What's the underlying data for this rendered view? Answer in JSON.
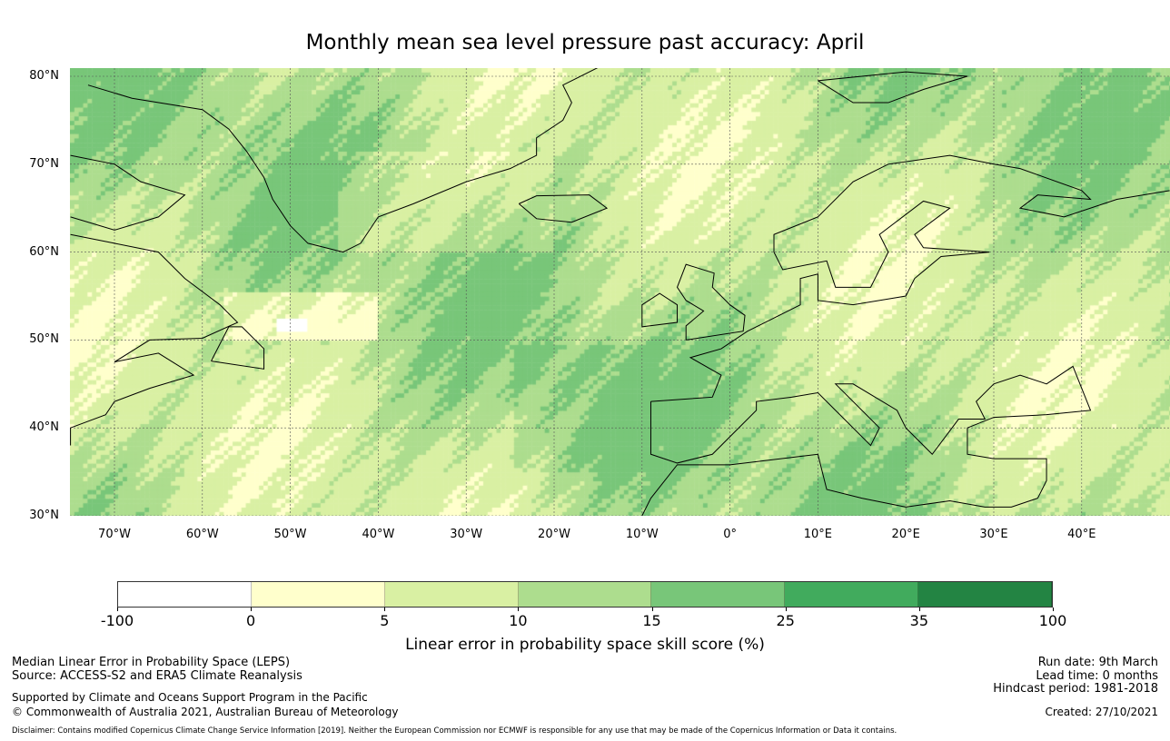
{
  "title": "Monthly mean sea level pressure past accuracy: April",
  "map": {
    "lat_labels": [
      "80°N",
      "70°N",
      "60°N",
      "50°N",
      "40°N",
      "30°N"
    ],
    "lat_values": [
      80,
      70,
      60,
      50,
      40,
      30
    ],
    "lon_labels": [
      "70°W",
      "60°W",
      "50°W",
      "40°W",
      "30°W",
      "20°W",
      "10°W",
      "0°",
      "10°E",
      "20°E",
      "30°E",
      "40°E"
    ],
    "lon_values": [
      -70,
      -60,
      -50,
      -40,
      -30,
      -20,
      -10,
      0,
      10,
      20,
      30,
      40
    ],
    "extent": {
      "lon": [
        -75,
        50
      ],
      "lat": [
        30,
        81
      ]
    }
  },
  "colorbar": {
    "ticks": [
      "-100",
      "0",
      "5",
      "10",
      "15",
      "25",
      "35",
      "100"
    ],
    "colors": [
      "#ffffff",
      "#ffffcc",
      "#d9f0a3",
      "#addd8e",
      "#78c679",
      "#41ab5d",
      "#238443"
    ],
    "label": "Linear error in probability space skill score (%)"
  },
  "footer": {
    "metric": "Median Linear Error in Probability Space (LEPS)",
    "source": "Source: ACCESS-S2 and ERA5 Climate Reanalysis",
    "supported": "Supported by Climate and Oceans Support Program in the Pacific",
    "copyright": "© Commonwealth of Australia 2021, Australian Bureau of Meteorology",
    "run_date": "Run date: 9th March",
    "lead_time": "Lead time: 0 months",
    "hindcast": "Hindcast period: 1981-2018",
    "created": "Created: 27/10/2021",
    "disclaimer": "Disclaimer: Contains modified Copernicus Climate Change Service Information [2019]. Neither the European Commission nor ECMWF is responsible for any use that may be made of the Copernicus Information or Data it contains."
  }
}
